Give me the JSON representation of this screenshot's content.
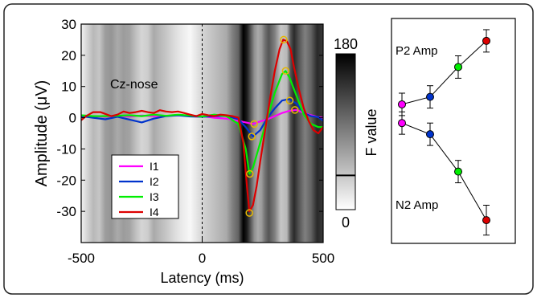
{
  "chart_data": [
    {
      "type": "line",
      "annotation": "Cz-nose",
      "xlabel": "Latency (ms)",
      "ylabel": "Amplitude (μV)",
      "xlim": [
        -500,
        500
      ],
      "ylim": [
        -40,
        30
      ],
      "xticks": [
        "-500",
        "0",
        "500"
      ],
      "yticks": [
        "30",
        "20",
        "10",
        "0",
        "-10",
        "-20",
        "-30"
      ],
      "legend_position": "bottom-left",
      "series": [
        {
          "name": "I1",
          "color": "#ff00ff",
          "x": [
            -500,
            -450,
            -400,
            -350,
            -300,
            -250,
            -200,
            -150,
            -100,
            -50,
            0,
            50,
            100,
            150,
            180,
            210,
            240,
            270,
            300,
            330,
            360,
            390,
            420,
            450,
            480,
            500
          ],
          "y": [
            0.2,
            0.5,
            0.3,
            0.6,
            0.4,
            0.7,
            0.5,
            0.6,
            0.8,
            0.6,
            0.5,
            0,
            -0.3,
            -1,
            -1.5,
            -2,
            -1.2,
            -0.5,
            0.5,
            1.5,
            2.2,
            2.5,
            1.5,
            0.8,
            0.2,
            0
          ]
        },
        {
          "name": "I2",
          "color": "#0033cc",
          "x": [
            -500,
            -450,
            -400,
            -350,
            -300,
            -250,
            -200,
            -150,
            -100,
            -50,
            0,
            50,
            100,
            150,
            180,
            210,
            240,
            270,
            300,
            330,
            360,
            390,
            420,
            450,
            480,
            500
          ],
          "y": [
            0.5,
            0,
            -0.5,
            0.3,
            -0.6,
            -1.5,
            -0.3,
            0.5,
            0.8,
            0.4,
            0.3,
            0.5,
            0.6,
            -0.5,
            -3,
            -6,
            -4,
            0,
            3,
            5.5,
            6,
            4.5,
            1.5,
            0.5,
            0.2,
            -1
          ]
        },
        {
          "name": "I3",
          "color": "#00ee00",
          "x": [
            -500,
            -450,
            -400,
            -350,
            -300,
            -250,
            -200,
            -150,
            -100,
            -50,
            0,
            50,
            100,
            150,
            180,
            195,
            210,
            240,
            270,
            300,
            330,
            345,
            360,
            390,
            420,
            450,
            480,
            500
          ],
          "y": [
            0.8,
            0.5,
            0.5,
            0.6,
            0.8,
            0.5,
            1,
            0.6,
            1,
            0.7,
            0.4,
            1,
            0.5,
            -2,
            -10,
            -18,
            -16,
            -8,
            0,
            8,
            14,
            15,
            13,
            7,
            1,
            -2,
            -3,
            -3
          ]
        },
        {
          "name": "I4",
          "color": "#dd0000",
          "x": [
            -500,
            -480,
            -450,
            -420,
            -400,
            -375,
            -350,
            -325,
            -300,
            -275,
            -250,
            -225,
            -200,
            -175,
            -150,
            -125,
            -100,
            -75,
            -50,
            -25,
            0,
            25,
            50,
            75,
            100,
            125,
            150,
            170,
            185,
            195,
            210,
            225,
            240,
            260,
            280,
            300,
            320,
            335,
            350,
            365,
            380,
            400,
            420,
            440,
            460,
            480,
            500
          ],
          "y": [
            -0.8,
            0.5,
            1.8,
            1.8,
            1.2,
            0.5,
            1,
            2,
            1.5,
            1.8,
            2.2,
            1.8,
            1.5,
            2.4,
            2,
            1.8,
            2,
            1.5,
            1,
            0.5,
            1.2,
            0.8,
            0.5,
            1,
            0.8,
            0.5,
            0,
            -8,
            -22,
            -30,
            -28,
            -22,
            -14,
            -4,
            6,
            15,
            22,
            25,
            24.5,
            22,
            16,
            9,
            3,
            -1,
            -4,
            -5,
            -3
          ]
        }
      ],
      "markers": [
        {
          "series": "I1",
          "x": 215,
          "y": -2
        },
        {
          "series": "I2",
          "x": 205,
          "y": -6
        },
        {
          "series": "I3",
          "x": 197,
          "y": -18
        },
        {
          "series": "I4",
          "x": 195,
          "y": -30.5
        },
        {
          "series": "I1",
          "x": 383,
          "y": 2.5
        },
        {
          "series": "I2",
          "x": 362,
          "y": 5.5
        },
        {
          "series": "I3",
          "x": 345,
          "y": 15
        },
        {
          "series": "I4",
          "x": 337,
          "y": 25
        }
      ],
      "marker_color": "#e6b800",
      "heatmap": {
        "label": "F value",
        "scale_min": "0",
        "scale_max": "180",
        "threshold_fraction": 0.22,
        "fvalue_x": [
          -500,
          -450,
          -425,
          -400,
          -375,
          -350,
          -325,
          -300,
          -275,
          -250,
          -225,
          -200,
          -175,
          -150,
          -100,
          -50,
          0,
          50,
          100,
          125,
          150,
          170,
          185,
          200,
          215,
          230,
          245,
          260,
          275,
          300,
          325,
          350,
          365,
          380,
          400,
          425,
          450,
          475,
          500
        ],
        "fvalue_y": [
          10,
          50,
          40,
          70,
          75,
          60,
          70,
          65,
          45,
          30,
          35,
          60,
          50,
          40,
          20,
          5,
          30,
          45,
          60,
          90,
          110,
          180,
          160,
          120,
          80,
          60,
          70,
          100,
          120,
          90,
          40,
          50,
          120,
          150,
          120,
          90,
          110,
          150,
          140
        ]
      }
    },
    {
      "type": "line",
      "series": [
        {
          "name": "P2 Amp",
          "values": [
            2,
            4,
            12,
            19
          ],
          "errors": [
            3,
            3,
            3,
            3
          ],
          "marker_colors": [
            "#ff00ff",
            "#0033cc",
            "#00ee00",
            "#dd0000"
          ]
        },
        {
          "name": "N2 Amp",
          "values": [
            -3,
            -6,
            -16,
            -29
          ],
          "errors": [
            3,
            3,
            3,
            4
          ],
          "marker_colors": [
            "#ff00ff",
            "#0033cc",
            "#00ee00",
            "#dd0000"
          ]
        }
      ],
      "ylim": [
        -35,
        25
      ]
    }
  ]
}
